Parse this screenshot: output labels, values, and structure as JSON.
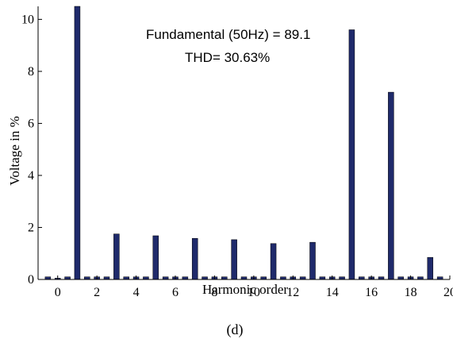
{
  "chart_data": {
    "type": "bar",
    "xlabel": "Harmonic order",
    "ylabel": "Voltage in %",
    "xlim": [
      -1,
      20
    ],
    "ylim": [
      0,
      10.5
    ],
    "xticks": [
      0,
      2,
      4,
      6,
      8,
      10,
      12,
      14,
      16,
      18,
      20
    ],
    "yticks": [
      0,
      2,
      4,
      6,
      8,
      10
    ],
    "annotations": [
      "Fundamental (50Hz) = 89.1",
      "THD= 30.63%"
    ],
    "caption": "(d)",
    "bar_color": "#1f2a6b",
    "x": [
      -0.5,
      0,
      0.5,
      1,
      1.5,
      2,
      2.5,
      3,
      3.5,
      4,
      4.5,
      5,
      5.5,
      6,
      6.5,
      7,
      7.5,
      8,
      8.5,
      9,
      9.5,
      10,
      10.5,
      11,
      11.5,
      12,
      12.5,
      13,
      13.5,
      14,
      14.5,
      15,
      15.5,
      16,
      16.5,
      17,
      17.5,
      18,
      18.5,
      19,
      19.5
    ],
    "values": [
      0.1,
      0.05,
      0.1,
      10.5,
      0.1,
      0.1,
      0.1,
      1.75,
      0.1,
      0.1,
      0.1,
      1.68,
      0.1,
      0.1,
      0.1,
      1.58,
      0.1,
      0.1,
      0.1,
      1.53,
      0.1,
      0.1,
      0.1,
      1.38,
      0.1,
      0.1,
      0.1,
      1.43,
      0.1,
      0.1,
      0.1,
      9.6,
      0.1,
      0.1,
      0.1,
      7.2,
      0.1,
      0.1,
      0.1,
      0.85,
      0.1
    ]
  }
}
